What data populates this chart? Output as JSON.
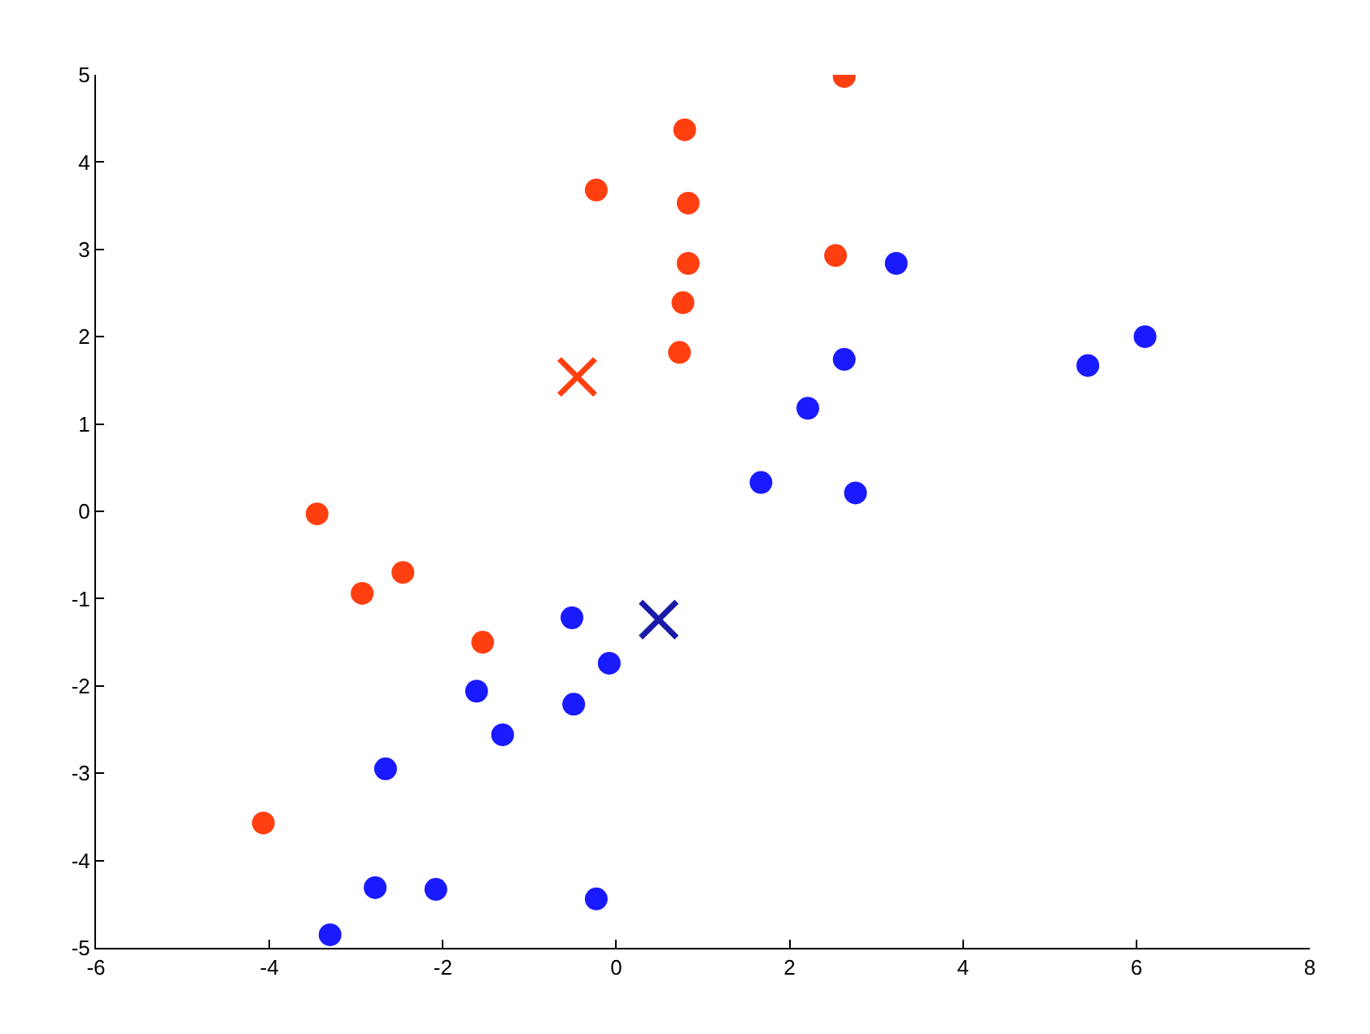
{
  "chart_data": {
    "type": "scatter",
    "xlim": [
      -6,
      8
    ],
    "ylim": [
      -5,
      5
    ],
    "xticks": [
      -6,
      -4,
      -2,
      0,
      2,
      4,
      6,
      8
    ],
    "yticks": [
      -5,
      -4,
      -3,
      -2,
      -1,
      0,
      1,
      2,
      3,
      4,
      5
    ],
    "grid": false,
    "marker": "circle",
    "series": [
      {
        "color": "#ff3f10",
        "x": [
          2.63,
          0.79,
          -0.23,
          0.83,
          0.83,
          2.53,
          0.77,
          0.73,
          -3.45,
          -2.46,
          -2.93,
          -1.54,
          -4.07
        ],
        "values": [
          4.98,
          4.37,
          3.68,
          3.53,
          2.84,
          2.93,
          2.39,
          1.82,
          -0.03,
          -0.7,
          -0.94,
          -1.5,
          -3.57
        ]
      },
      {
        "color": "#1a1aff",
        "x": [
          3.23,
          6.1,
          5.44,
          2.63,
          2.21,
          1.67,
          2.76,
          -0.51,
          -0.08,
          -1.61,
          -0.49,
          -1.31,
          -2.66,
          -2.78,
          -2.08,
          -0.23,
          -3.3
        ],
        "values": [
          2.84,
          2.0,
          1.67,
          1.74,
          1.18,
          0.33,
          0.21,
          -1.22,
          -1.74,
          -2.06,
          -2.21,
          -2.56,
          -2.95,
          -4.31,
          -4.33,
          -4.44,
          -4.85
        ]
      },
      {
        "color": "#ff3f10",
        "marker": "cross",
        "x": [
          -0.45
        ],
        "values": [
          1.54
        ]
      },
      {
        "color": "#1a1aa8",
        "marker": "cross",
        "x": [
          0.49
        ],
        "values": [
          -1.24
        ]
      }
    ]
  }
}
